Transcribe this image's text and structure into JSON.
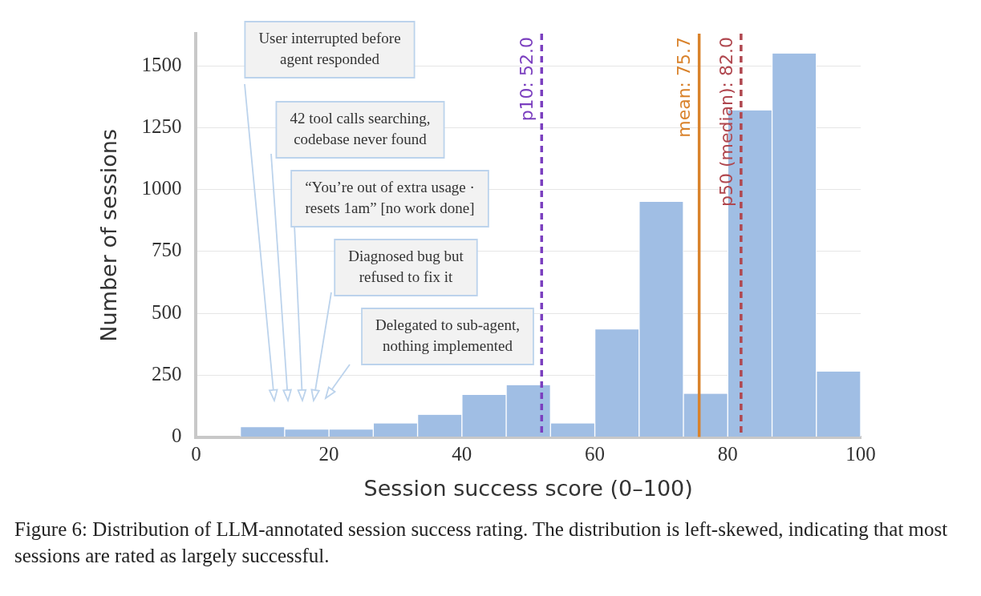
{
  "chart_data": {
    "type": "histogram",
    "xlabel": "Session success score (0–100)",
    "ylabel": "Number of sessions",
    "bins": [
      6.67,
      13.33,
      20,
      26.67,
      33.33,
      40,
      46.67,
      53.33,
      60,
      66.67,
      73.33,
      80,
      86.67,
      93.33,
      100
    ],
    "values": [
      40,
      30,
      30,
      55,
      90,
      170,
      210,
      55,
      435,
      950,
      175,
      1320,
      1550,
      265
    ],
    "color": "#a0bee4",
    "xlim": [
      0,
      100
    ],
    "xticks": [
      0,
      20,
      40,
      60,
      80,
      100
    ],
    "ylim": [
      0,
      1630
    ],
    "yticks": [
      0,
      250,
      500,
      750,
      1000,
      1250,
      1500
    ],
    "grid": "y",
    "legend": false,
    "ref_lines": [
      {
        "axis": "x",
        "value": 52.0,
        "label": "p10: 52.0",
        "color": "#7b3fbf",
        "line_style": "dashed"
      },
      {
        "axis": "x",
        "value": 75.7,
        "label": "mean: 75.7",
        "color": "#d9822b",
        "line_style": "solid"
      },
      {
        "axis": "x",
        "value": 82.0,
        "label": "p50 (median): 82.0",
        "color": "#b0474f",
        "line_style": "dashed"
      }
    ],
    "annotations": [
      "User interrupted before\nagent responded",
      "42 tool calls searching,\ncodebase never found",
      "“You’re out of extra usage ·\nresets 1am” [no work done]",
      "Diagnosed bug but\nrefused to fix it",
      "Delegated to sub-agent,\nnothing implemented",
      "Figure 6: Distribution of LLM-annotated session success rating. The distribution is left-skewed, indicating that most sessions are rated as largely successful."
    ]
  }
}
